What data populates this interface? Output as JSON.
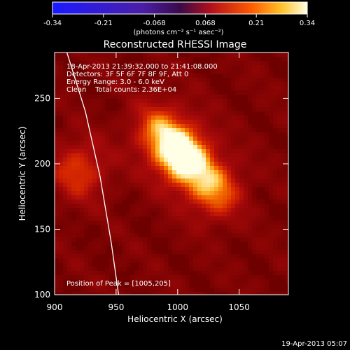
{
  "chart_data": {
    "type": "heatmap",
    "title": "Reconstructed RHESSI Image",
    "xlabel": "Heliocentric X (arcsec)",
    "ylabel": "Heliocentric Y (arcsec)",
    "xlim": [
      900,
      1090
    ],
    "ylim": [
      100,
      285
    ],
    "xticks": [
      900,
      950,
      1000,
      1050
    ],
    "yticks": [
      100,
      150,
      200,
      250
    ],
    "colorbar": {
      "range": [
        -0.34,
        0.34
      ],
      "ticks": [
        "-0.34",
        "-0.21",
        "-0.068",
        "0.068",
        "0.21",
        "0.34"
      ],
      "label": "(photons cm⁻² s⁻¹ asec⁻²)"
    },
    "annotations": {
      "time_range": "18-Apr-2013 21:39:32.000 to 21:41:08.000",
      "detectors": "Detectors: 3F 5F 6F 7F 8F 9F, Att 0",
      "energy": "Energy Range: 3.0 - 6.0 keV",
      "clean": "Clean    Total counts: 2.36E+04",
      "peak": "Position of Peak = [1005,205]"
    },
    "peak": [
      1005,
      205
    ],
    "sources": [
      {
        "x": 1005,
        "y": 205,
        "peak": 0.34
      },
      {
        "x": 1030,
        "y": 180,
        "peak": 0.22
      },
      {
        "x": 985,
        "y": 225,
        "peak": 0.2
      },
      {
        "x": 920,
        "y": 195,
        "peak": 0.17
      }
    ],
    "limb_curve": [
      [
        910,
        285
      ],
      [
        925,
        240
      ],
      [
        937,
        190
      ],
      [
        946,
        140
      ],
      [
        952,
        100
      ]
    ]
  },
  "footer": {
    "timestamp": "19-Apr-2013 05:07"
  }
}
